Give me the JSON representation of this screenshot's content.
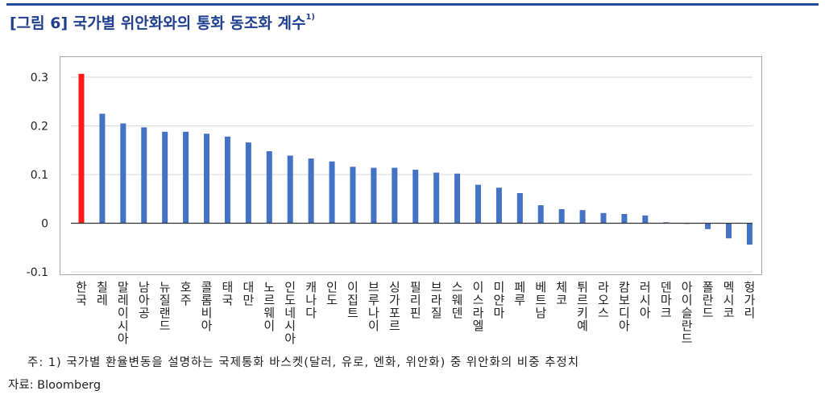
{
  "title": "[그림 6] 국가별 위안화와의 통화 동조화 계수",
  "title_note": "1)",
  "footnote": "주: 1) 국가별 환율변동을 설명하는 국제통화 바스켓(달러, 유로, 엔화, 위안화) 중 위안화의 비중 추정치",
  "source": "자료: Bloomberg",
  "colors": {
    "highlight": "#ff1a1a",
    "bar": "#4472c4",
    "grid": "#d9d9d9",
    "title": "#1f3f8f"
  },
  "chart_data": {
    "type": "bar",
    "categories": [
      "한국",
      "칠레",
      "말레이시아",
      "남아공",
      "뉴질랜드",
      "호주",
      "콜롬비아",
      "태국",
      "대만",
      "노르웨이",
      "인도네시아",
      "캐나다",
      "인도",
      "이집트",
      "브루나이",
      "싱가포르",
      "필리핀",
      "브라질",
      "스웨덴",
      "이스라엘",
      "미얀마",
      "페루",
      "베트남",
      "체코",
      "튀르키예",
      "라오스",
      "캄보디아",
      "러시아",
      "덴마크",
      "아이슬란드",
      "폴란드",
      "멕시코",
      "헝가리"
    ],
    "values": [
      0.307,
      0.225,
      0.205,
      0.197,
      0.188,
      0.188,
      0.184,
      0.178,
      0.166,
      0.148,
      0.139,
      0.133,
      0.127,
      0.116,
      0.114,
      0.114,
      0.11,
      0.104,
      0.102,
      0.079,
      0.073,
      0.062,
      0.037,
      0.029,
      0.027,
      0.021,
      0.019,
      0.016,
      0.002,
      0.0,
      -0.012,
      -0.031,
      -0.044
    ],
    "highlight_index": 0,
    "ylim": [
      -0.1,
      0.3
    ],
    "yticks": [
      -0.1,
      0,
      0.1,
      0.2,
      0.3
    ],
    "ytick_labels": [
      "-0.1",
      "0",
      "0.1",
      "0.2",
      "0.3"
    ],
    "grid": true
  }
}
